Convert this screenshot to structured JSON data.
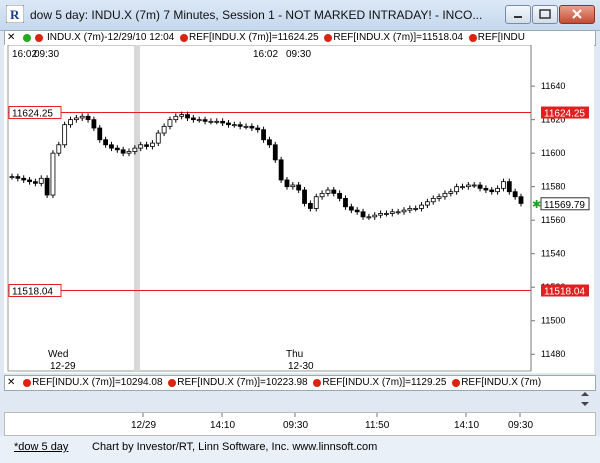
{
  "window": {
    "title": "dow 5 day: INDU.X (7m) 7 Minutes, Session 1 - NOT MARKED INTRADAY! - INCO...",
    "app_icon_letter": "R"
  },
  "top_toolbar": {
    "symbol": "INDU.X (7m)-12/29/10 12:04",
    "refs": [
      "REF[INDU.X (7m)]=11624.25",
      "REF[INDU.X (7m)]=11518.04",
      "REF[INDU"
    ]
  },
  "bottom_toolbar": {
    "refs": [
      "REF[INDU.X (7m)]=10294.08",
      "REF[INDU.X (7m)]=10223.98",
      "REF[INDU.X (7m)]=1129.25",
      "REF[INDU.X (7m)"
    ]
  },
  "chart": {
    "time_labels_top": [
      "16:02",
      "09:30",
      "16:02",
      "09:30"
    ],
    "day_labels": [
      {
        "day": "Wed",
        "date": "12-29"
      },
      {
        "day": "Thu",
        "date": "12-30"
      }
    ],
    "price_axis": [
      "11640",
      "11620",
      "11600",
      "11580",
      "11560",
      "11540",
      "11520",
      "11500",
      "11480"
    ],
    "ref_lines": [
      {
        "label": "11624.25",
        "value": 11624.25
      },
      {
        "label": "11518.04",
        "value": 11518.04
      }
    ],
    "last_price": "11569.79",
    "colors": {
      "ref_line": "#e02020",
      "candle": "#000000",
      "last_marker": "#20a020",
      "session_shade": "#d8d8d8"
    }
  },
  "chart_data": {
    "type": "candlestick",
    "ylim": [
      11470,
      11655
    ],
    "values": [
      11586,
      11585,
      11584,
      11583,
      11582,
      11585,
      11575,
      11600,
      11605,
      11617,
      11620,
      11621,
      11622,
      11620,
      11615,
      11608,
      11605,
      11603,
      11602,
      11600,
      11601,
      11603,
      11605,
      11604,
      11606,
      11612,
      11616,
      11620,
      11622,
      11623,
      11621,
      11620,
      11620,
      11619,
      11619,
      11619,
      11618,
      11617,
      11617,
      11616,
      11616,
      11615,
      11614,
      11608,
      11605,
      11596,
      11584,
      11580,
      11581,
      11578,
      11570,
      11567,
      11574,
      11576,
      11578,
      11576,
      11573,
      11568,
      11566,
      11565,
      11562,
      11562,
      11563,
      11564,
      11564,
      11565,
      11565,
      11566,
      11567,
      11567,
      11569,
      11571,
      11573,
      11574,
      11576,
      11577,
      11580,
      11580,
      11581,
      11581,
      11579,
      11578,
      11577,
      11579,
      11583,
      11577,
      11574,
      11570
    ]
  },
  "x_axis": {
    "labels": [
      "12/29",
      "14:10",
      "09:30",
      "11:50",
      "14:10",
      "09:30"
    ]
  },
  "status_bar": {
    "tab": "*dow 5 day",
    "credit": "Chart by Investor/RT, Linn Software, Inc. www.linnsoft.com"
  }
}
